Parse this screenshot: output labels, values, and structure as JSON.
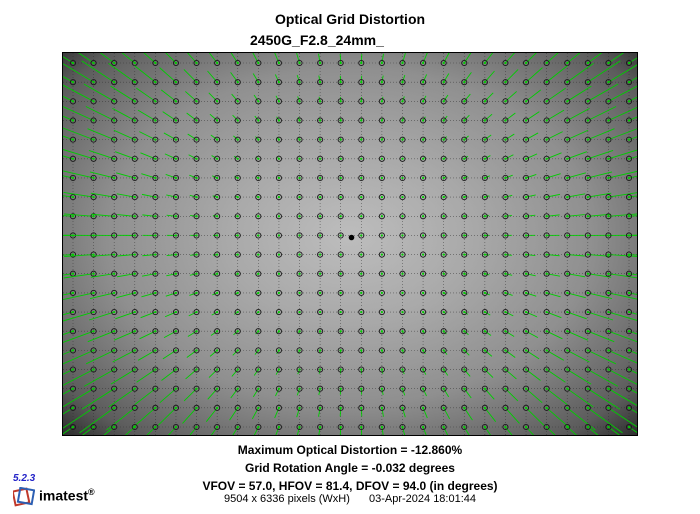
{
  "header": {
    "title": "Optical Grid Distortion",
    "subtitle": "2450G_F2.8_24mm_"
  },
  "chart_data": {
    "type": "scatter",
    "grid": {
      "columns": 28,
      "rows": 20
    },
    "center_marker": true,
    "max_distortion_percent": -12.86,
    "colors": {
      "vector": "#00cc00",
      "detected_point": "#1a1a1a",
      "ideal_grid": "#2b2b2b"
    }
  },
  "stats": {
    "max_distortion": "Maximum Optical Distortion = -12.860%",
    "rotation": "Grid Rotation Angle = -0.032 degrees",
    "fov": "VFOV = 57.0, HFOV = 81.4, DFOV = 94.0 (in degrees)"
  },
  "footer": {
    "pixels": "9504 x 6336 pixels (WxH)",
    "timestamp": "03-Apr-2024 18:01:44"
  },
  "brand": {
    "version": "5.2.3",
    "name": "imatest",
    "registered": "®"
  }
}
